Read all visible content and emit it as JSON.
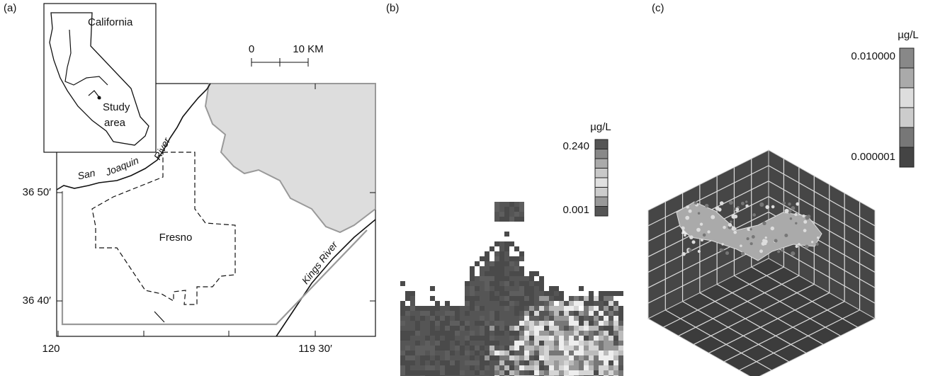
{
  "panel_a": {
    "label": "(a)",
    "inset_title": "California",
    "inset_note_1": "Study",
    "inset_note_2": "area",
    "scale_start": "0",
    "scale_end": "10 KM",
    "river_1_a": "San",
    "river_1_b": "Joaquin",
    "river_1_c": "River",
    "city": "Fresno",
    "river_2": "Kings River",
    "lat_labels": [
      "36 50′",
      "36 40′"
    ],
    "lon_labels": [
      "120",
      "119 30′"
    ]
  },
  "panel_b": {
    "label": "(b)",
    "unit": "µg/L",
    "scale_max": "0.240",
    "scale_min": "0.001"
  },
  "panel_c": {
    "label": "(c)",
    "unit": "µg/L",
    "scale_max": "0.010000",
    "scale_min": "0.000001"
  }
}
